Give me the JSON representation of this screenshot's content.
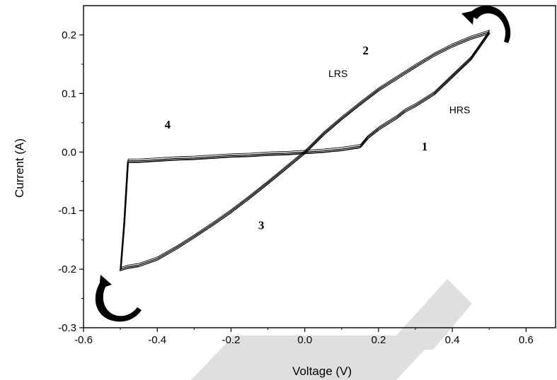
{
  "chart_data": {
    "type": "line",
    "title": "",
    "xlabel": "Voltage (V)",
    "ylabel": "Current (A)",
    "xlim": [
      -0.6,
      0.68
    ],
    "ylim": [
      -0.3,
      0.25
    ],
    "xticks": [
      -0.6,
      -0.4,
      -0.2,
      0.0,
      0.2,
      0.4,
      0.6
    ],
    "yticks": [
      -0.3,
      -0.2,
      -0.1,
      0.0,
      0.1,
      0.2
    ],
    "xtick_labels": [
      "-0.6",
      "-0.4",
      "-0.2",
      "0.0",
      "0.2",
      "0.4",
      "0.6"
    ],
    "ytick_labels": [
      "-0.3",
      "-0.2",
      "-0.1",
      "0.0",
      "0.1",
      "0.2"
    ],
    "grid": false,
    "series": [
      {
        "name": "",
        "x": [
          0.0,
          0.05,
          0.1,
          0.15,
          0.17,
          0.2,
          0.22,
          0.25,
          0.27,
          0.3,
          0.35,
          0.4,
          0.45,
          0.5,
          0.45,
          0.4,
          0.35,
          0.3,
          0.25,
          0.2,
          0.15,
          0.1,
          0.05,
          0.0,
          -0.05,
          -0.1,
          -0.15,
          -0.2,
          -0.25,
          -0.3,
          -0.35,
          -0.4,
          -0.45,
          -0.48,
          -0.5,
          -0.49,
          -0.48,
          -0.45,
          -0.4,
          -0.35,
          -0.3,
          -0.25,
          -0.2,
          -0.15,
          -0.1,
          -0.05,
          0.0
        ],
        "y": [
          0.0,
          0.002,
          0.005,
          0.01,
          0.025,
          0.04,
          0.048,
          0.06,
          0.07,
          0.08,
          0.1,
          0.13,
          0.16,
          0.205,
          0.195,
          0.182,
          0.166,
          0.147,
          0.127,
          0.107,
          0.083,
          0.058,
          0.031,
          0.0,
          -0.026,
          -0.052,
          -0.077,
          -0.101,
          -0.123,
          -0.144,
          -0.164,
          -0.182,
          -0.193,
          -0.196,
          -0.2,
          -0.12,
          -0.015,
          -0.015,
          -0.013,
          -0.011,
          -0.01,
          -0.008,
          -0.006,
          -0.005,
          -0.003,
          -0.002,
          0.0
        ]
      }
    ],
    "annotations": {
      "region_numbers": [
        {
          "text": "1",
          "x": 0.325,
          "y": 0.003
        },
        {
          "text": "2",
          "x": 0.165,
          "y": 0.167
        },
        {
          "text": "3",
          "x": -0.118,
          "y": -0.132
        },
        {
          "text": "4",
          "x": -0.372,
          "y": 0.04
        }
      ],
      "state_labels": [
        {
          "text": "LRS",
          "x": 0.09,
          "y": 0.128
        },
        {
          "text": "HRS",
          "x": 0.42,
          "y": 0.066
        }
      ],
      "arrows": [
        {
          "icon": "clockwise-arrow-icon",
          "x": 0.55,
          "y": 0.205
        },
        {
          "icon": "clockwise-arrow-icon",
          "x": -0.51,
          "y": -0.265
        }
      ]
    },
    "colors": {
      "line": "#000000",
      "axis": "#000000",
      "watermark": "#d9d9d9"
    }
  }
}
